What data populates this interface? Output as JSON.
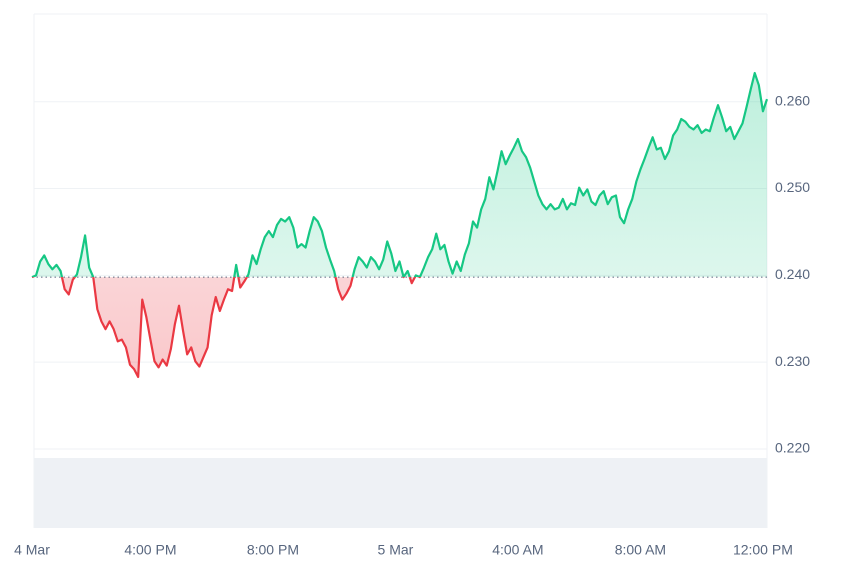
{
  "chart_data": {
    "type": "line",
    "x": [
      728,
      736,
      744,
      752,
      760,
      768,
      776,
      784,
      792,
      800,
      808,
      816,
      824,
      832,
      840,
      848,
      856,
      864,
      872,
      880,
      888,
      896,
      904,
      912,
      920,
      928,
      936,
      944,
      952,
      960,
      968,
      976,
      984,
      992,
      1000,
      1008,
      1016,
      1024,
      1032,
      1040,
      1048,
      1056,
      1064,
      1072,
      1080,
      1088,
      1096,
      1104,
      1112,
      1120,
      1128,
      1136,
      1144,
      1152,
      1160,
      1168,
      1176,
      1184,
      1192,
      1200,
      1208,
      1216,
      1224,
      1232,
      1240,
      1248,
      1256,
      1264,
      1272,
      1280,
      1288,
      1296,
      1304,
      1312,
      1320,
      1328,
      1336,
      1344,
      1352,
      1360,
      1368,
      1376,
      1384,
      1392,
      1400,
      1408,
      1416,
      1424,
      1432,
      1440,
      1448,
      1456,
      1464,
      1472,
      1480,
      1488,
      1496,
      1504,
      1512,
      1520,
      1528,
      1536,
      1544,
      1552,
      1560,
      1568,
      1576,
      1584,
      1592,
      1600,
      1608,
      1616,
      1624,
      1632,
      1640,
      1648,
      1656,
      1664,
      1672,
      1680,
      1688,
      1696,
      1704,
      1712,
      1720,
      1728,
      1736,
      1744,
      1752,
      1760,
      1768,
      1776,
      1784,
      1792,
      1800,
      1808,
      1816,
      1824,
      1832,
      1840,
      1848,
      1856,
      1864,
      1872,
      1880,
      1888,
      1896,
      1904,
      1912,
      1920,
      1928,
      1936,
      1944,
      1952,
      1960,
      1968,
      1976,
      1984,
      1992,
      2000,
      2008,
      2016,
      2024,
      2032,
      2040,
      2048,
      2056,
      2064,
      2072,
      2080,
      2088,
      2096,
      2104,
      2112,
      2120,
      2128,
      2136,
      2144,
      2152,
      2160,
      2168
    ],
    "values": [
      0.2398,
      0.24,
      0.2416,
      0.2423,
      0.2413,
      0.2407,
      0.2412,
      0.2405,
      0.2384,
      0.2378,
      0.2395,
      0.2401,
      0.2421,
      0.2446,
      0.2409,
      0.2398,
      0.2361,
      0.2347,
      0.2338,
      0.2347,
      0.2338,
      0.2324,
      0.2326,
      0.2317,
      0.2297,
      0.2292,
      0.2283,
      0.2372,
      0.2352,
      0.2326,
      0.2301,
      0.2294,
      0.2303,
      0.2296,
      0.2315,
      0.2344,
      0.2365,
      0.2336,
      0.2309,
      0.2317,
      0.2301,
      0.2295,
      0.2306,
      0.2317,
      0.2354,
      0.2375,
      0.2359,
      0.2372,
      0.2384,
      0.2382,
      0.2412,
      0.2386,
      0.2393,
      0.2401,
      0.2423,
      0.2413,
      0.243,
      0.2444,
      0.2451,
      0.2444,
      0.2458,
      0.2465,
      0.2462,
      0.2467,
      0.2455,
      0.2432,
      0.2436,
      0.2432,
      0.2451,
      0.2467,
      0.2462,
      0.2451,
      0.2432,
      0.2418,
      0.2405,
      0.2384,
      0.2372,
      0.2379,
      0.2388,
      0.2407,
      0.2421,
      0.2416,
      0.2409,
      0.2421,
      0.2416,
      0.2407,
      0.2418,
      0.2439,
      0.2425,
      0.2405,
      0.2416,
      0.2398,
      0.2405,
      0.2391,
      0.24,
      0.2398,
      0.2409,
      0.2421,
      0.243,
      0.2448,
      0.243,
      0.2435,
      0.2416,
      0.2402,
      0.2416,
      0.2405,
      0.2424,
      0.2437,
      0.2462,
      0.2455,
      0.2476,
      0.2488,
      0.2513,
      0.2499,
      0.252,
      0.2543,
      0.2528,
      0.2538,
      0.2547,
      0.2557,
      0.2543,
      0.2536,
      0.2524,
      0.2508,
      0.2492,
      0.2482,
      0.2476,
      0.2482,
      0.2476,
      0.2478,
      0.2488,
      0.2476,
      0.2483,
      0.2481,
      0.2501,
      0.2492,
      0.2499,
      0.2485,
      0.2481,
      0.2492,
      0.2497,
      0.2482,
      0.249,
      0.2492,
      0.2467,
      0.246,
      0.2476,
      0.2488,
      0.2508,
      0.2522,
      0.2534,
      0.2547,
      0.2559,
      0.2545,
      0.2547,
      0.2534,
      0.2543,
      0.2561,
      0.2568,
      0.258,
      0.2577,
      0.2571,
      0.2568,
      0.2573,
      0.2564,
      0.2568,
      0.2566,
      0.2582,
      0.2596,
      0.2582,
      0.2566,
      0.2571,
      0.2557,
      0.2566,
      0.2575,
      0.2594,
      0.2614,
      0.2633,
      0.2619,
      0.2589,
      0.2603
    ],
    "up_color": "#16c784",
    "down_color": "#ea3943",
    "xlim": [
      728,
      2168
    ],
    "xticks": [
      {
        "value": 728,
        "label": "4 Mar"
      },
      {
        "value": 960,
        "label": "4:00 PM"
      },
      {
        "value": 1200,
        "label": "8:00 PM"
      },
      {
        "value": 1440,
        "label": "5 Mar"
      },
      {
        "value": 1680,
        "label": "4:00 AM"
      },
      {
        "value": 1920,
        "label": "8:00 AM"
      },
      {
        "value": 2160,
        "label": "12:00 PM"
      }
    ],
    "ylim": [
      0.2109,
      0.2701
    ],
    "yticks": [
      {
        "value": 0.22,
        "label": "0.220"
      },
      {
        "value": 0.23,
        "label": "0.230"
      },
      {
        "value": 0.24,
        "label": "0.240"
      },
      {
        "value": 0.25,
        "label": "0.250"
      },
      {
        "value": 0.26,
        "label": "0.260"
      }
    ],
    "grid": true
  }
}
